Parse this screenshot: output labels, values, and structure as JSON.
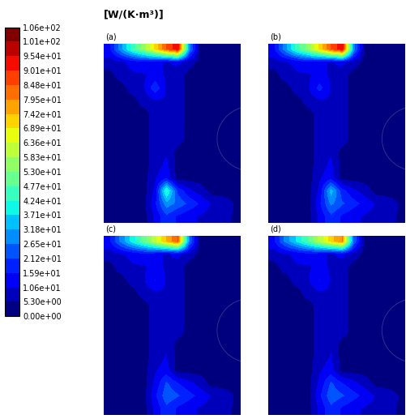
{
  "chart_data": {
    "type": "heatmap",
    "colorbar_label": "[W/(K·m³)]",
    "tick_labels": false,
    "colorbar": {
      "range": [
        0,
        106
      ],
      "ticks": [
        {
          "value": 0,
          "label": "0.00e+00"
        },
        {
          "value": 5.3,
          "label": "5.30e+00"
        },
        {
          "value": 10.6,
          "label": "1.06e+01"
        },
        {
          "value": 15.9,
          "label": "1.59e+01"
        },
        {
          "value": 21.2,
          "label": "2.12e+01"
        },
        {
          "value": 26.5,
          "label": "2.65e+01"
        },
        {
          "value": 31.8,
          "label": "3.18e+01"
        },
        {
          "value": 37.1,
          "label": "3.71e+01"
        },
        {
          "value": 42.4,
          "label": "4.24e+01"
        },
        {
          "value": 47.7,
          "label": "4.77e+01"
        },
        {
          "value": 53.0,
          "label": "5.30e+01"
        },
        {
          "value": 58.3,
          "label": "5.83e+01"
        },
        {
          "value": 63.6,
          "label": "6.36e+01"
        },
        {
          "value": 68.9,
          "label": "6.89e+01"
        },
        {
          "value": 74.2,
          "label": "7.42e+01"
        },
        {
          "value": 79.5,
          "label": "7.95e+01"
        },
        {
          "value": 84.8,
          "label": "8.48e+01"
        },
        {
          "value": 90.1,
          "label": "9.01e+01"
        },
        {
          "value": 95.4,
          "label": "9.54e+01"
        },
        {
          "value": 100.7,
          "label": "1.01e+02"
        },
        {
          "value": 106,
          "label": "1.06e+02"
        }
      ]
    },
    "panels": [
      {
        "label": "(a)",
        "cells": [
          [
            15,
            30,
            45,
            55,
            70,
            85,
            95,
            30,
            3,
            3,
            3,
            3
          ],
          [
            8,
            10,
            12,
            15,
            12,
            10,
            12,
            8,
            3,
            3,
            3,
            3
          ],
          [
            3,
            8,
            10,
            10,
            12,
            10,
            8,
            3,
            3,
            3,
            3,
            3
          ],
          [
            3,
            3,
            8,
            10,
            20,
            10,
            8,
            3,
            3,
            3,
            3,
            3
          ],
          [
            3,
            3,
            3,
            8,
            10,
            10,
            8,
            3,
            3,
            3,
            3,
            3
          ],
          [
            3,
            3,
            3,
            3,
            8,
            10,
            8,
            3,
            3,
            3,
            3,
            3
          ],
          [
            3,
            3,
            3,
            3,
            8,
            10,
            8,
            3,
            3,
            3,
            3,
            3
          ],
          [
            3,
            3,
            3,
            3,
            8,
            10,
            8,
            3,
            3,
            3,
            3,
            3
          ],
          [
            3,
            3,
            3,
            3,
            8,
            10,
            3,
            3,
            3,
            3,
            3,
            3
          ],
          [
            3,
            3,
            3,
            3,
            8,
            12,
            3,
            3,
            3,
            3,
            3,
            3
          ],
          [
            3,
            3,
            3,
            3,
            10,
            15,
            3,
            3,
            3,
            3,
            3,
            3
          ],
          [
            3,
            3,
            3,
            3,
            12,
            45,
            20,
            12,
            8,
            3,
            3,
            3
          ],
          [
            3,
            3,
            3,
            3,
            15,
            30,
            25,
            20,
            15,
            10,
            8,
            5
          ],
          [
            3,
            3,
            3,
            3,
            12,
            20,
            15,
            12,
            10,
            8,
            6,
            5
          ]
        ]
      },
      {
        "label": "(b)",
        "cells": [
          [
            15,
            30,
            45,
            55,
            70,
            85,
            95,
            30,
            3,
            3,
            3,
            3
          ],
          [
            8,
            10,
            12,
            15,
            12,
            10,
            12,
            8,
            3,
            3,
            3,
            3
          ],
          [
            3,
            8,
            10,
            10,
            12,
            10,
            8,
            3,
            3,
            3,
            3,
            3
          ],
          [
            3,
            3,
            8,
            10,
            18,
            10,
            8,
            3,
            3,
            3,
            3,
            3
          ],
          [
            3,
            3,
            3,
            8,
            10,
            10,
            8,
            3,
            3,
            3,
            3,
            3
          ],
          [
            3,
            3,
            3,
            3,
            8,
            10,
            8,
            3,
            3,
            3,
            3,
            3
          ],
          [
            3,
            3,
            3,
            3,
            8,
            10,
            8,
            3,
            3,
            3,
            3,
            3
          ],
          [
            3,
            3,
            3,
            3,
            8,
            10,
            8,
            3,
            3,
            3,
            3,
            3
          ],
          [
            3,
            3,
            3,
            3,
            8,
            10,
            3,
            3,
            3,
            3,
            3,
            3
          ],
          [
            3,
            3,
            3,
            3,
            8,
            12,
            3,
            3,
            3,
            3,
            3,
            3
          ],
          [
            3,
            3,
            3,
            3,
            10,
            14,
            3,
            3,
            3,
            3,
            3,
            3
          ],
          [
            3,
            3,
            3,
            3,
            12,
            35,
            18,
            12,
            8,
            3,
            3,
            3
          ],
          [
            3,
            3,
            3,
            3,
            15,
            28,
            22,
            18,
            14,
            10,
            8,
            5
          ],
          [
            3,
            3,
            3,
            3,
            12,
            20,
            15,
            12,
            10,
            8,
            6,
            5
          ]
        ]
      },
      {
        "label": "(c)",
        "cells": [
          [
            15,
            28,
            40,
            50,
            62,
            75,
            85,
            28,
            3,
            3,
            3,
            3
          ],
          [
            8,
            10,
            12,
            14,
            12,
            10,
            12,
            8,
            3,
            3,
            3,
            3
          ],
          [
            3,
            8,
            10,
            10,
            12,
            10,
            8,
            3,
            3,
            3,
            3,
            3
          ],
          [
            3,
            3,
            8,
            10,
            16,
            10,
            8,
            3,
            3,
            3,
            3,
            3
          ],
          [
            3,
            3,
            3,
            8,
            10,
            10,
            8,
            3,
            3,
            3,
            3,
            3
          ],
          [
            3,
            3,
            3,
            3,
            8,
            10,
            8,
            3,
            3,
            3,
            3,
            3
          ],
          [
            3,
            3,
            3,
            3,
            8,
            10,
            8,
            3,
            3,
            3,
            3,
            3
          ],
          [
            3,
            3,
            3,
            3,
            8,
            10,
            8,
            3,
            3,
            3,
            3,
            3
          ],
          [
            3,
            3,
            3,
            3,
            8,
            10,
            3,
            3,
            3,
            3,
            3,
            3
          ],
          [
            3,
            3,
            3,
            3,
            8,
            11,
            3,
            3,
            3,
            3,
            3,
            3
          ],
          [
            3,
            3,
            3,
            3,
            10,
            13,
            3,
            3,
            3,
            3,
            3,
            3
          ],
          [
            3,
            3,
            3,
            3,
            12,
            22,
            16,
            12,
            8,
            3,
            3,
            3
          ],
          [
            3,
            3,
            3,
            3,
            15,
            25,
            22,
            18,
            14,
            10,
            8,
            5
          ],
          [
            3,
            3,
            3,
            3,
            12,
            20,
            15,
            12,
            10,
            8,
            6,
            5
          ]
        ]
      },
      {
        "label": "(d)",
        "cells": [
          [
            15,
            28,
            38,
            48,
            60,
            72,
            80,
            26,
            3,
            3,
            3,
            3
          ],
          [
            8,
            10,
            12,
            14,
            12,
            10,
            12,
            8,
            3,
            3,
            3,
            3
          ],
          [
            3,
            8,
            10,
            10,
            12,
            10,
            8,
            3,
            3,
            3,
            3,
            3
          ],
          [
            3,
            3,
            8,
            10,
            16,
            10,
            8,
            3,
            3,
            3,
            3,
            3
          ],
          [
            3,
            3,
            3,
            8,
            10,
            10,
            8,
            3,
            3,
            3,
            3,
            3
          ],
          [
            3,
            3,
            3,
            3,
            8,
            10,
            8,
            3,
            3,
            3,
            3,
            3
          ],
          [
            3,
            3,
            3,
            3,
            8,
            10,
            8,
            3,
            3,
            3,
            3,
            3
          ],
          [
            3,
            3,
            3,
            3,
            8,
            10,
            8,
            3,
            3,
            3,
            3,
            3
          ],
          [
            3,
            3,
            3,
            3,
            8,
            10,
            3,
            3,
            3,
            3,
            3,
            3
          ],
          [
            3,
            3,
            3,
            3,
            8,
            11,
            3,
            3,
            3,
            3,
            3,
            3
          ],
          [
            3,
            3,
            3,
            3,
            10,
            13,
            3,
            3,
            3,
            3,
            3,
            3
          ],
          [
            3,
            3,
            3,
            3,
            12,
            22,
            16,
            12,
            8,
            3,
            3,
            3
          ],
          [
            3,
            3,
            3,
            3,
            15,
            25,
            22,
            18,
            14,
            10,
            8,
            5
          ],
          [
            3,
            3,
            3,
            3,
            12,
            20,
            15,
            12,
            10,
            8,
            6,
            5
          ]
        ]
      }
    ]
  }
}
